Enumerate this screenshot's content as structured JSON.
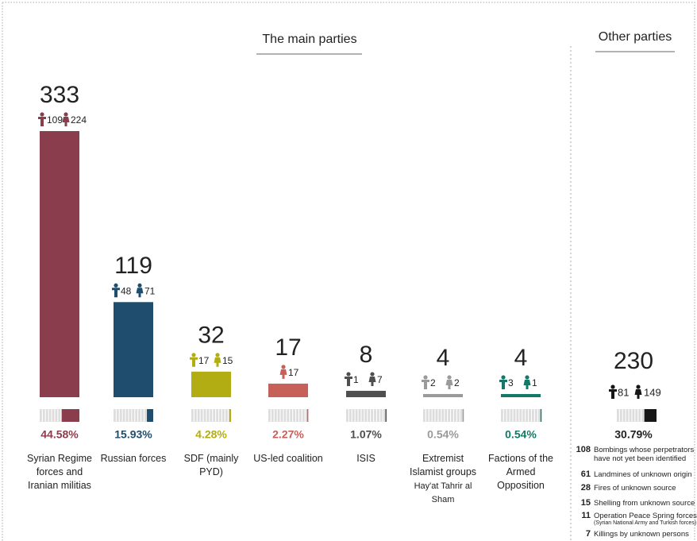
{
  "chart_data": {
    "type": "bar",
    "title": "The main parties",
    "categories": [
      "Syrian Regime forces and Iranian militias",
      "Russian forces",
      "SDF (mainly PYD)",
      "US-led coalition",
      "ISIS",
      "Extremist Islamist groups",
      "Factions of the Armed Opposition"
    ],
    "category_notes": [
      null,
      null,
      null,
      null,
      null,
      "Hay'at Tahrir al Sham",
      null
    ],
    "values": [
      333,
      119,
      32,
      17,
      8,
      4,
      4
    ],
    "male": [
      109,
      48,
      17,
      null,
      1,
      2,
      3
    ],
    "female": [
      224,
      71,
      15,
      17,
      7,
      2,
      1
    ],
    "percent": [
      44.58,
      15.93,
      4.28,
      2.27,
      1.07,
      0.54,
      0.54
    ],
    "percent_labels": [
      "44.58%",
      "15.93%",
      "4.28%",
      "2.27%",
      "1.07%",
      "0.54%",
      "0.54%"
    ],
    "colors": [
      "#8a3d4c",
      "#1e4d6e",
      "#b3ad14",
      "#c8605a",
      "#4f4f4f",
      "#9a9a9a",
      "#147866"
    ],
    "other": {
      "title": "Other parties",
      "total": 230,
      "male": 81,
      "female": 149,
      "percent": 30.79,
      "percent_label": "30.79%",
      "color": "#161616",
      "items": [
        {
          "value": 108,
          "label": "Bombings whose perpetrators have not yet been identified"
        },
        {
          "value": 61,
          "label": "Landmines of unknown origin"
        },
        {
          "value": 28,
          "label": "Fires of unknown source"
        },
        {
          "value": 15,
          "label": "Shelling from unknown source"
        },
        {
          "value": 11,
          "label": "Operation Peace Spring forces",
          "note": "(Syrian National Army and Turkish forces)"
        },
        {
          "value": 7,
          "label": "Killings by unknown persons"
        }
      ]
    }
  }
}
